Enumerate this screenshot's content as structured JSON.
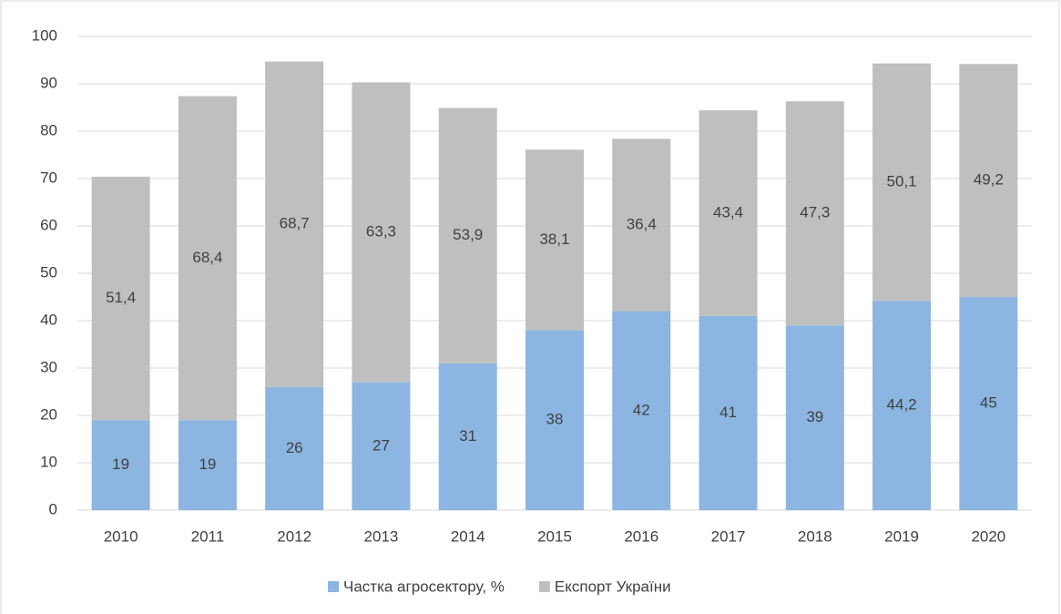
{
  "chart_data": {
    "type": "stacked_bar",
    "categories": [
      "2010",
      "2011",
      "2012",
      "2013",
      "2014",
      "2015",
      "2016",
      "2017",
      "2018",
      "2019",
      "2020"
    ],
    "series": [
      {
        "name": "Частка агросектору, %",
        "color": "#8cb6e1",
        "values": [
          19,
          19,
          26,
          27,
          31,
          38,
          42,
          41,
          39,
          44.2,
          45
        ],
        "value_labels": [
          "19",
          "19",
          "26",
          "27",
          "31",
          "38",
          "42",
          "41",
          "39",
          "44,2",
          "45"
        ]
      },
      {
        "name": "Експорт України",
        "color": "#bfbfbf",
        "values": [
          51.4,
          68.4,
          68.7,
          63.3,
          53.9,
          38.1,
          36.4,
          43.4,
          47.3,
          50.1,
          49.2
        ],
        "value_labels": [
          "51,4",
          "68,4",
          "68,7",
          "63,3",
          "53,9",
          "38,1",
          "36,4",
          "43,4",
          "47,3",
          "50,1",
          "49,2"
        ]
      }
    ],
    "ylim": [
      0,
      100
    ],
    "yticks": [
      0,
      10,
      20,
      30,
      40,
      50,
      60,
      70,
      80,
      90,
      100
    ],
    "grid": true,
    "legend": "bottom"
  }
}
